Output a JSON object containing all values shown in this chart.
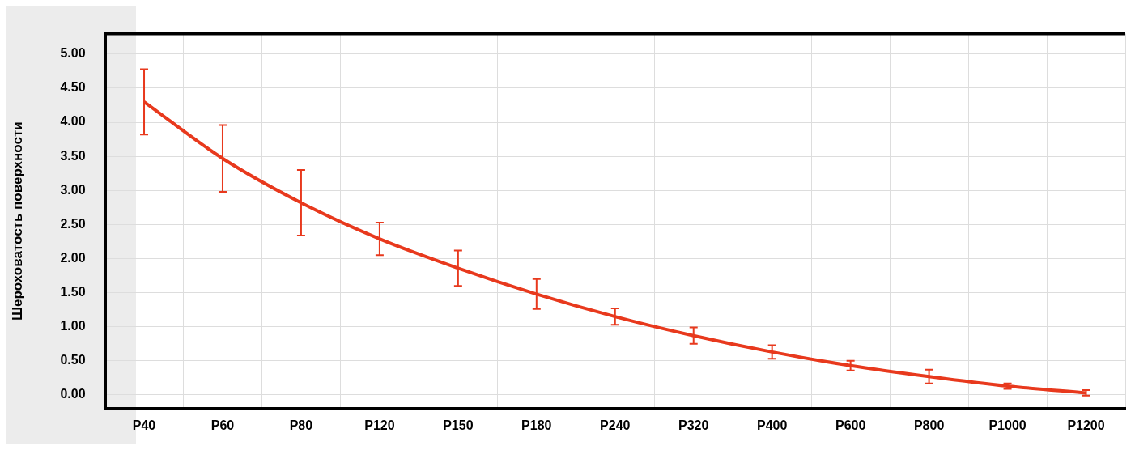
{
  "chart_data": {
    "type": "line",
    "ylabel": "Шероховатость поверхности",
    "categories": [
      "P40",
      "P60",
      "P80",
      "P120",
      "P150",
      "P180",
      "P240",
      "P320",
      "P400",
      "P600",
      "P800",
      "P1000",
      "P1200"
    ],
    "series": [
      {
        "color": "#e8391d",
        "values": [
          4.3,
          3.47,
          2.82,
          2.29,
          1.86,
          1.48,
          1.15,
          0.87,
          0.63,
          0.43,
          0.27,
          0.13,
          0.03
        ],
        "errors": [
          0.48,
          0.49,
          0.48,
          0.24,
          0.26,
          0.22,
          0.12,
          0.12,
          0.1,
          0.07,
          0.1,
          0.04,
          0.04
        ]
      }
    ],
    "ylim": [
      -0.2,
      5.3
    ],
    "yticks": [
      {
        "value": 0,
        "label": "0.00"
      },
      {
        "value": 0.5,
        "label": "0.50"
      },
      {
        "value": 1,
        "label": "1.00"
      },
      {
        "value": 1.5,
        "label": "1.50"
      },
      {
        "value": 2,
        "label": "2.00"
      },
      {
        "value": 2.5,
        "label": "2.50"
      },
      {
        "value": 3,
        "label": "3.00"
      },
      {
        "value": 3.5,
        "label": "3.50"
      },
      {
        "value": 4,
        "label": "4.00"
      },
      {
        "value": 4.5,
        "label": "4.50"
      },
      {
        "value": 5,
        "label": "5.00"
      }
    ],
    "grid": true,
    "legend": false,
    "marker": "none",
    "line_style": "solid"
  }
}
